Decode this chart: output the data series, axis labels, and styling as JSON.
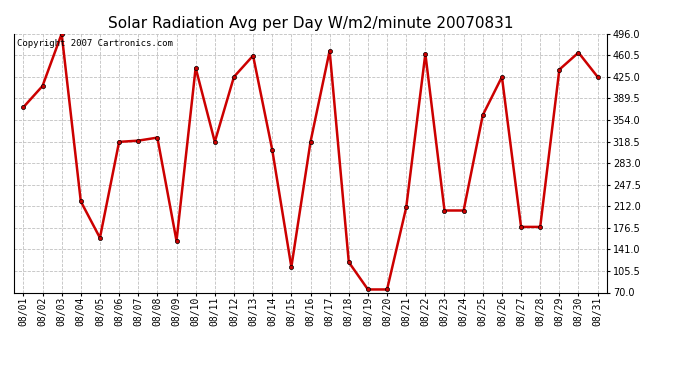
{
  "title": "Solar Radiation Avg per Day W/m2/minute 20070831",
  "copyright_text": "Copyright 2007 Cartronics.com",
  "dates": [
    "08/01",
    "08/02",
    "08/03",
    "08/04",
    "08/05",
    "08/06",
    "08/07",
    "08/08",
    "08/09",
    "08/10",
    "08/11",
    "08/12",
    "08/13",
    "08/14",
    "08/15",
    "08/16",
    "08/17",
    "08/18",
    "08/19",
    "08/20",
    "08/21",
    "08/22",
    "08/23",
    "08/24",
    "08/25",
    "08/26",
    "08/27",
    "08/28",
    "08/29",
    "08/30",
    "08/31"
  ],
  "values": [
    375,
    410,
    496,
    220,
    160,
    318,
    320,
    325,
    155,
    440,
    318,
    425,
    460,
    305,
    112,
    318,
    468,
    120,
    75,
    75,
    210,
    463,
    205,
    205,
    362,
    425,
    178,
    178,
    437,
    465,
    425
  ],
  "line_color": "#CC0000",
  "marker_color": "#000000",
  "bg_color": "#ffffff",
  "plot_bg_color": "#ffffff",
  "grid_color": "#c0c0c0",
  "ylim": [
    70.0,
    496.0
  ],
  "yticks": [
    70.0,
    105.5,
    141.0,
    176.5,
    212.0,
    247.5,
    283.0,
    318.5,
    354.0,
    389.5,
    425.0,
    460.5,
    496.0
  ],
  "title_fontsize": 11,
  "copyright_fontsize": 6.5,
  "tick_fontsize": 7,
  "line_width": 1.8,
  "marker_size": 3
}
